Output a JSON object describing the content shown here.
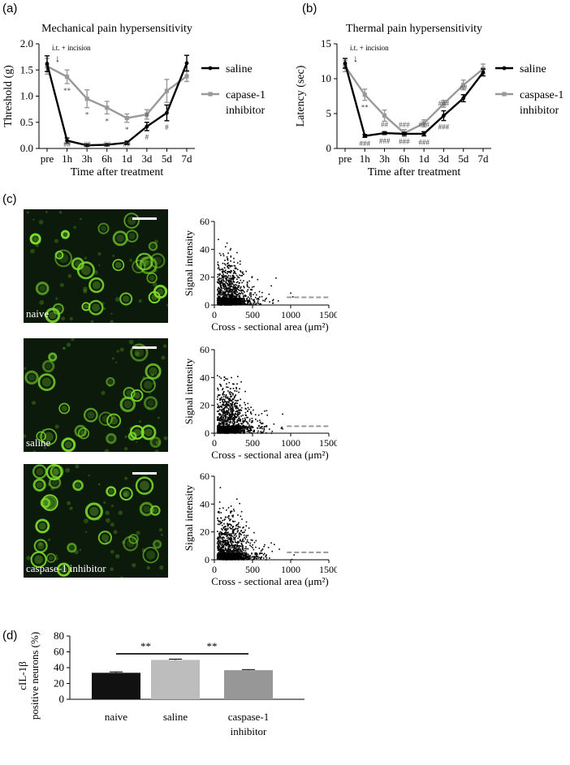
{
  "panel_letters": {
    "a": "(a)",
    "b": "(b)",
    "c": "(c)",
    "d": "(d)"
  },
  "colors": {
    "saline": "#000000",
    "inhibitor": "#999999",
    "naive_bar": "#111111",
    "saline_bar": "#bdbdbd",
    "inhibitor_bar": "#979797",
    "micro_bg": "#0c1a0c",
    "cell": "#7dde2a"
  },
  "chart_data": [
    {
      "id": "a",
      "type": "line",
      "title": "Mechanical pain hypersensitivity",
      "xlabel": "Time after treatment",
      "ylabel": "Threshold (g)",
      "categories": [
        "pre",
        "1h",
        "3h",
        "6h",
        "1d",
        "3d",
        "5d",
        "7d"
      ],
      "ylim": [
        0,
        2.0
      ],
      "yticks": [
        "0.0",
        "0.5",
        "1.0",
        "1.5",
        "2.0"
      ],
      "annotation": "i.t. + incision",
      "arrow": "↓",
      "series": [
        {
          "name": "saline",
          "values": [
            1.62,
            0.15,
            0.06,
            0.07,
            0.11,
            0.42,
            0.68,
            1.63
          ],
          "err": [
            0.15,
            0.05,
            0.02,
            0.02,
            0.03,
            0.08,
            0.15,
            0.15
          ]
        },
        {
          "name": "capase-1 inhibitor",
          "values": [
            1.57,
            1.37,
            0.95,
            0.78,
            0.58,
            0.65,
            1.1,
            1.38
          ],
          "err": [
            0.15,
            0.13,
            0.17,
            0.12,
            0.08,
            0.09,
            0.22,
            0.1
          ]
        }
      ],
      "marks": [
        {
          "i": 1,
          "top": "**",
          "bottom": "##"
        },
        {
          "i": 2,
          "top": "*",
          "bottom": "##"
        },
        {
          "i": 3,
          "top": "*",
          "bottom": "##"
        },
        {
          "i": 4,
          "top": "*",
          "bottom": "##"
        },
        {
          "i": 5,
          "top": "#",
          "bottom": "#"
        },
        {
          "i": 6,
          "top": "",
          "bottom": "#"
        }
      ]
    },
    {
      "id": "b",
      "type": "line",
      "title": "Thermal pain hypersensitivity",
      "xlabel": "Time after treatment",
      "ylabel": "Latency (sec)",
      "categories": [
        "pre",
        "1h",
        "3h",
        "6h",
        "1d",
        "3d",
        "5d",
        "7d"
      ],
      "ylim": [
        0,
        15
      ],
      "yticks": [
        "0",
        "5",
        "10",
        "15"
      ],
      "annotation": "i.t. + incision",
      "arrow": "↓",
      "series": [
        {
          "name": "saline",
          "values": [
            12.2,
            1.8,
            2.2,
            2.1,
            2.1,
            4.7,
            7.2,
            10.9
          ],
          "err": [
            0.7,
            0.2,
            0.2,
            0.2,
            0.3,
            0.7,
            0.5,
            0.5
          ]
        },
        {
          "name": "caspase-1 inhibitor",
          "values": [
            11.8,
            7.7,
            4.7,
            2.2,
            3.6,
            6.4,
            9.1,
            11.4
          ],
          "err": [
            0.8,
            0.8,
            0.8,
            0.5,
            0.5,
            0.5,
            0.7,
            0.7
          ]
        }
      ],
      "marks": [
        {
          "i": 1,
          "top": "**",
          "bottom": "###"
        },
        {
          "i": 2,
          "top": "##",
          "bottom": "###"
        },
        {
          "i": 3,
          "top": "###",
          "bottom": "###"
        },
        {
          "i": 4,
          "top": "###",
          "bottom": "###"
        },
        {
          "i": 5,
          "top": "###",
          "bottom": "###"
        },
        {
          "i": 6,
          "top": "##",
          "bottom": ""
        }
      ]
    },
    {
      "id": "c1",
      "type": "scatter",
      "group": "naive",
      "xlabel": "Cross - sectional area (μm²)",
      "ylabel": "Signal intensity",
      "xlim": [
        0,
        1500
      ],
      "ylim": [
        0,
        60
      ],
      "xticks": [
        "0",
        "500",
        "1000",
        "1500"
      ],
      "yticks": [
        "0",
        "20",
        "40",
        "60"
      ],
      "threshold": 5.5,
      "seed": 11
    },
    {
      "id": "c2",
      "type": "scatter",
      "group": "saline",
      "xlabel": "Cross - sectional area (μm²)",
      "ylabel": "Signal intensity",
      "xlim": [
        0,
        1500
      ],
      "ylim": [
        0,
        60
      ],
      "xticks": [
        "0",
        "500",
        "1000",
        "1500"
      ],
      "yticks": [
        "0",
        "20",
        "40",
        "60"
      ],
      "threshold": 5.0,
      "seed": 23
    },
    {
      "id": "c3",
      "type": "scatter",
      "group": "caspase-1 inhibitor",
      "xlabel": "Cross - sectional area (μm²)",
      "ylabel": "Signal intensity",
      "xlim": [
        0,
        1500
      ],
      "ylim": [
        0,
        60
      ],
      "xticks": [
        "0",
        "500",
        "1000",
        "1500"
      ],
      "yticks": [
        "0",
        "20",
        "40",
        "60"
      ],
      "threshold": 5.3,
      "seed": 37
    },
    {
      "id": "d",
      "type": "bar",
      "ylabel_lines": [
        "cIL-1β",
        "positive neurons (%)"
      ],
      "categories": [
        [
          "naive"
        ],
        [
          "saline"
        ],
        [
          "caspase-1",
          "inhibitor"
        ]
      ],
      "values": [
        33.5,
        49.8,
        36.8
      ],
      "err": [
        1.2,
        1.0,
        0.8
      ],
      "ylim": [
        0,
        80
      ],
      "yticks": [
        "0",
        "20",
        "40",
        "60",
        "80"
      ],
      "significance": [
        {
          "from": 0,
          "to": 1,
          "label": "**"
        },
        {
          "from": 1,
          "to": 2,
          "label": "**"
        }
      ]
    }
  ],
  "micrographs": [
    {
      "label": "naive",
      "seed": 5
    },
    {
      "label": "saline",
      "seed": 9
    },
    {
      "label": "caspase-1 inhibitor",
      "seed": 14
    }
  ]
}
